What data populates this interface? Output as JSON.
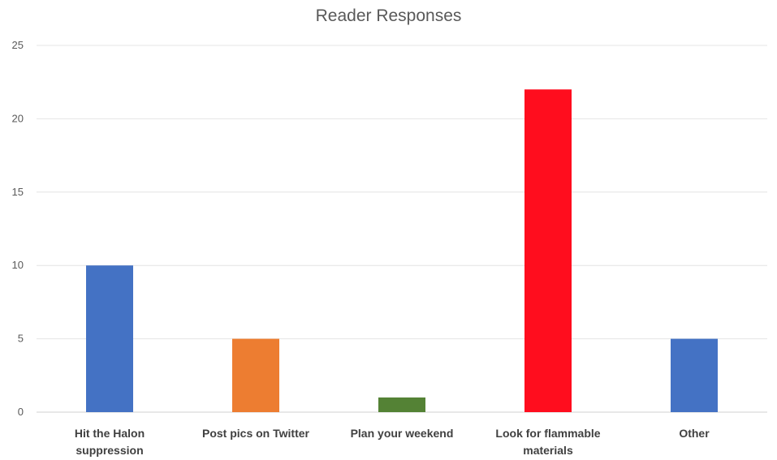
{
  "chart_data": {
    "type": "bar",
    "title": "Reader Responses",
    "xlabel": "",
    "ylabel": "",
    "categories": [
      "Hit the Halon suppression",
      "Post pics on Twitter",
      "Plan your weekend",
      "Look for flammable materials",
      "Other"
    ],
    "category_lines": [
      [
        "Hit the Halon",
        "suppression"
      ],
      [
        "Post pics on Twitter"
      ],
      [
        "Plan your weekend"
      ],
      [
        "Look for flammable",
        "materials"
      ],
      [
        "Other"
      ]
    ],
    "values": [
      10,
      5,
      1,
      22,
      5
    ],
    "colors": [
      "#4472c4",
      "#ed7d31",
      "#548235",
      "#ff0d1e",
      "#4472c4"
    ],
    "ylim": [
      0,
      25
    ],
    "yticks": [
      0,
      5,
      10,
      15,
      20,
      25
    ],
    "grid": true,
    "legend": "none"
  }
}
